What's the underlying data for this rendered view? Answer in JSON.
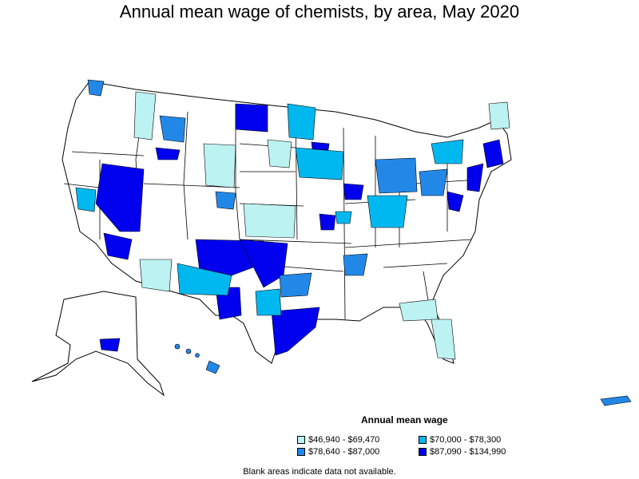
{
  "title": "Annual mean wage of chemists, by area, May 2020",
  "legend": {
    "title": "Annual mean wage",
    "items": [
      {
        "label": "$46,940 - $69,470",
        "color": "#bdf2f2"
      },
      {
        "label": "$70,000 - $78,300",
        "color": "#00b8f0"
      },
      {
        "label": "$78,640 - $87,000",
        "color": "#2288e8"
      },
      {
        "label": "$87,090 - $134,990",
        "color": "#0000ee"
      }
    ]
  },
  "note": "Blank areas indicate data not available."
}
